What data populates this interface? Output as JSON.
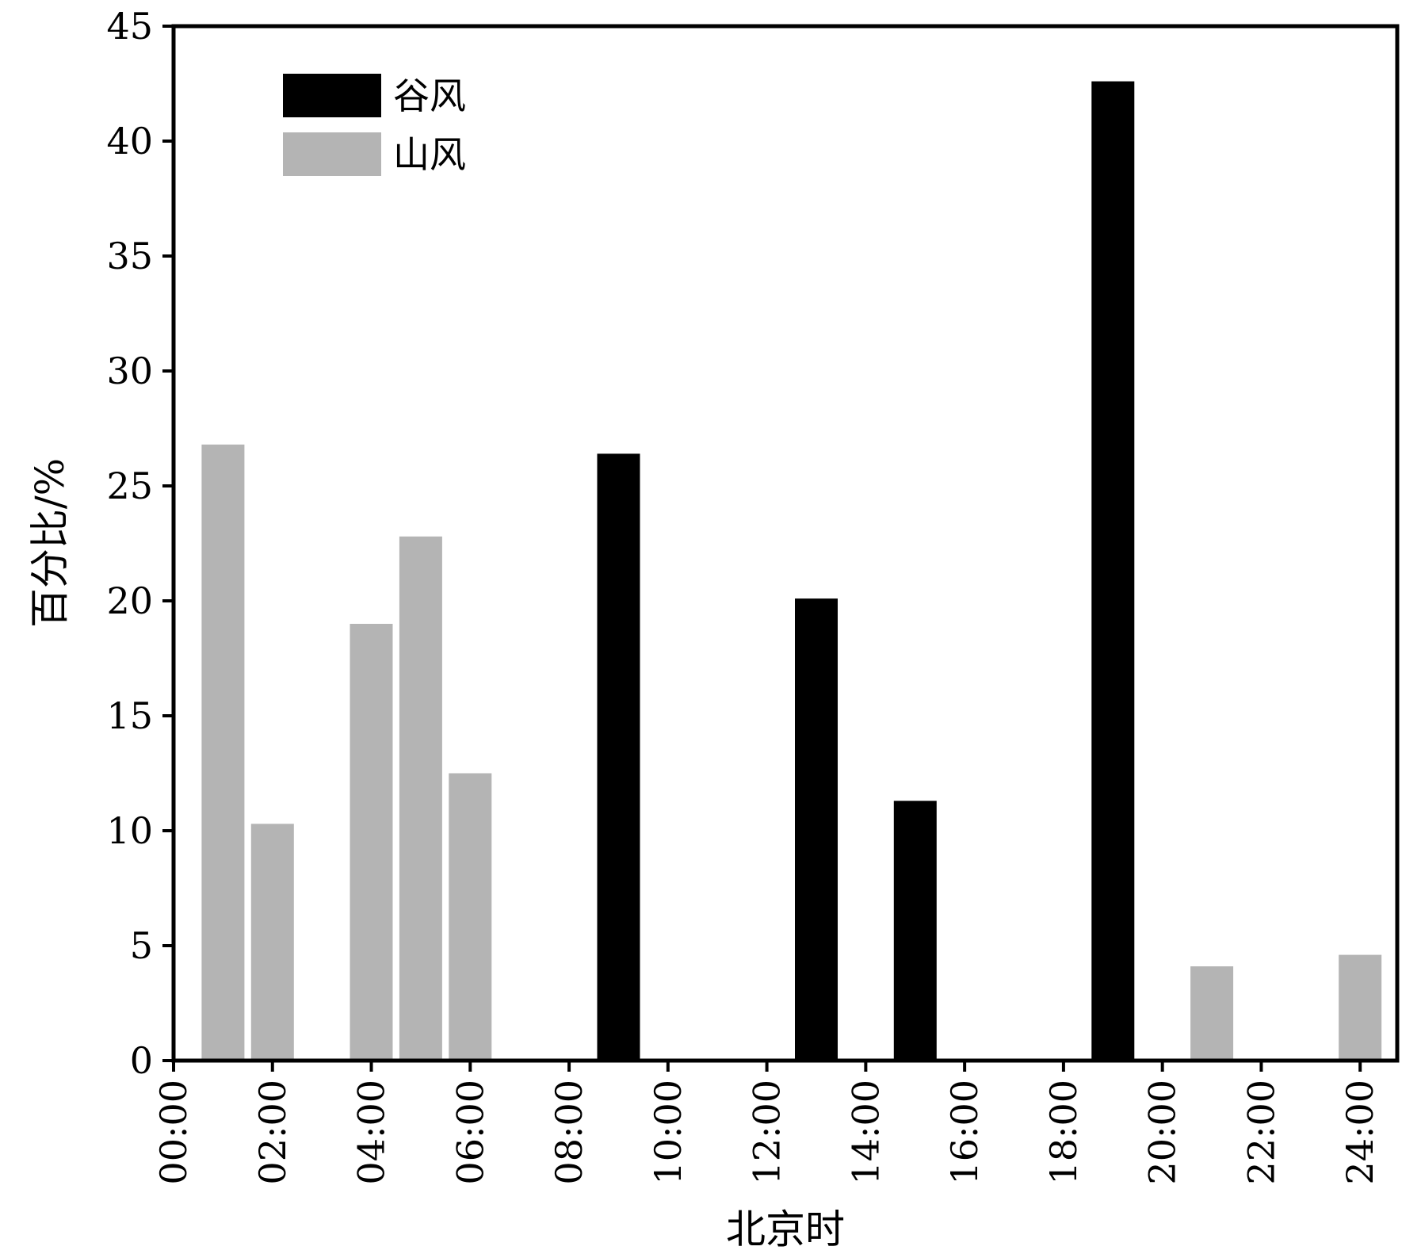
{
  "chart_data": {
    "type": "bar",
    "xlabel": "北京时",
    "ylabel": "百分比/%",
    "xlim": [
      0,
      24.75
    ],
    "ylim": [
      0,
      45
    ],
    "x_ticks": [
      "00:00",
      "02:00",
      "04:00",
      "06:00",
      "08:00",
      "10:00",
      "12:00",
      "14:00",
      "16:00",
      "18:00",
      "20:00",
      "22:00",
      "24:00"
    ],
    "x_tick_values": [
      0,
      2,
      4,
      6,
      8,
      10,
      12,
      14,
      16,
      18,
      20,
      22,
      24
    ],
    "y_ticks": [
      0,
      5,
      10,
      15,
      20,
      25,
      30,
      35,
      40,
      45
    ],
    "grid": false,
    "legend_position": "top-left",
    "series": [
      {
        "name": "谷风",
        "color": "#000000",
        "x": [
          9,
          13,
          15,
          19
        ],
        "values": [
          26.4,
          20.1,
          11.3,
          42.6
        ]
      },
      {
        "name": "山风",
        "color": "#b4b4b4",
        "x": [
          1,
          2,
          4,
          5,
          6,
          21,
          24
        ],
        "values": [
          26.8,
          10.3,
          19.0,
          22.8,
          12.5,
          4.1,
          4.6
        ]
      }
    ]
  }
}
